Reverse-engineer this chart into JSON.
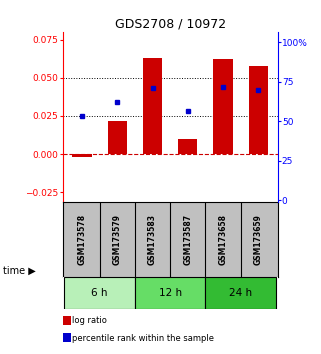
{
  "title": "GDS2708 / 10972",
  "samples": [
    "GSM173578",
    "GSM173579",
    "GSM173583",
    "GSM173587",
    "GSM173658",
    "GSM173659"
  ],
  "log_ratio": [
    -0.002,
    0.022,
    0.063,
    0.01,
    0.062,
    0.058
  ],
  "percentile_rank": [
    0.025,
    0.034,
    0.043,
    0.028,
    0.044,
    0.042
  ],
  "groups": [
    {
      "label": "6 h",
      "indices": [
        0,
        1
      ],
      "color": "#b8f0b8"
    },
    {
      "label": "12 h",
      "indices": [
        2,
        3
      ],
      "color": "#66dd66"
    },
    {
      "label": "24 h",
      "indices": [
        4,
        5
      ],
      "color": "#33bb33"
    }
  ],
  "bar_color_red": "#cc0000",
  "dot_color_blue": "#0000cc",
  "ylim_left": [
    -0.031,
    0.08
  ],
  "ylim_right": [
    -1.0,
    106.67
  ],
  "yticks_left": [
    -0.025,
    0,
    0.025,
    0.05,
    0.075
  ],
  "yticks_right": [
    0,
    25,
    50,
    75,
    100
  ],
  "hlines": [
    0.025,
    0.05
  ],
  "zero_line_y": 0.0,
  "bg_color": "#ffffff",
  "plot_bg": "#ffffff",
  "legend_red_label": "log ratio",
  "legend_blue_label": "percentile rank within the sample",
  "sample_bg": "#c0c0c0",
  "title_fontsize": 9
}
